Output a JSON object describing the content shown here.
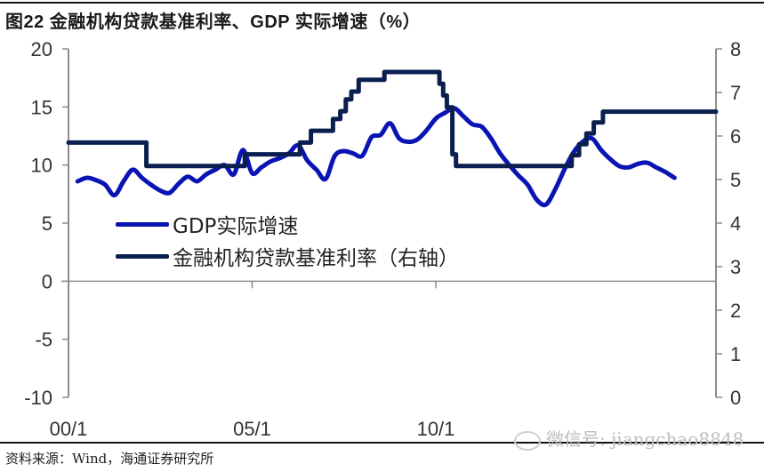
{
  "header": {
    "title": "图22 金融机构贷款基准利率、GDP 实际增速（%）"
  },
  "footer": {
    "source": "资料来源：Wind，海通证券研究所",
    "watermark": "微信号: jiangchao8848"
  },
  "colors": {
    "gdp": "#0a14b4",
    "rate": "#0a1f4f",
    "axis": "#8c8c8c",
    "text": "#333333"
  },
  "legend": {
    "items": [
      {
        "label": "GDP实际增速",
        "color": "#0a14b4"
      },
      {
        "label": "金融机构贷款基准利率（右轴）",
        "color": "#0a1f4f"
      }
    ]
  },
  "axes": {
    "left_ticks": [
      "20",
      "15",
      "10",
      "5",
      "0",
      "-5",
      "-10"
    ],
    "right_ticks": [
      "8",
      "7",
      "6",
      "5",
      "4",
      "3",
      "2",
      "1",
      "0"
    ],
    "x_ticks": [
      "00/1",
      "05/1",
      "10/1"
    ]
  },
  "chart_data": {
    "type": "line",
    "title": "图22 金融机构贷款基准利率、GDP 实际增速（%）",
    "xlabel": "",
    "ylabel": "",
    "x_tick_labels": [
      "00/1",
      "05/1",
      "10/1"
    ],
    "y_left_range": [
      -10,
      20
    ],
    "y_left_ticks": [
      -10,
      -5,
      0,
      5,
      10,
      15,
      20
    ],
    "y_right_range": [
      0,
      8
    ],
    "y_right_ticks": [
      0,
      1,
      2,
      3,
      4,
      5,
      6,
      7,
      8
    ],
    "grid": false,
    "legend_position": "center-left",
    "series": [
      {
        "name": "GDP实际增速",
        "axis": "left",
        "style": "smooth",
        "points": [
          [
            2000.25,
            8.6
          ],
          [
            2000.5,
            8.9
          ],
          [
            2000.75,
            8.7
          ],
          [
            2001.0,
            8.3
          ],
          [
            2001.25,
            7.4
          ],
          [
            2001.5,
            8.6
          ],
          [
            2001.75,
            9.6
          ],
          [
            2002.0,
            8.9
          ],
          [
            2002.25,
            8.3
          ],
          [
            2002.5,
            7.8
          ],
          [
            2002.75,
            7.6
          ],
          [
            2003.0,
            8.4
          ],
          [
            2003.25,
            9.0
          ],
          [
            2003.5,
            8.6
          ],
          [
            2003.75,
            9.2
          ],
          [
            2004.0,
            9.6
          ],
          [
            2004.25,
            10.0
          ],
          [
            2004.5,
            9.2
          ],
          [
            2004.75,
            11.3
          ],
          [
            2005.0,
            9.3
          ],
          [
            2005.25,
            9.8
          ],
          [
            2005.5,
            10.3
          ],
          [
            2005.75,
            10.6
          ],
          [
            2006.0,
            11.0
          ],
          [
            2006.25,
            11.7
          ],
          [
            2006.5,
            10.4
          ],
          [
            2006.75,
            9.6
          ],
          [
            2007.0,
            8.8
          ],
          [
            2007.25,
            10.8
          ],
          [
            2007.5,
            11.2
          ],
          [
            2007.75,
            11.0
          ],
          [
            2008.0,
            10.8
          ],
          [
            2008.25,
            12.4
          ],
          [
            2008.5,
            12.6
          ],
          [
            2008.75,
            13.6
          ],
          [
            2009.0,
            12.3
          ],
          [
            2009.25,
            12.0
          ],
          [
            2009.5,
            12.2
          ],
          [
            2009.75,
            13.0
          ],
          [
            2010.0,
            14.0
          ],
          [
            2010.25,
            14.5
          ],
          [
            2010.5,
            14.9
          ],
          [
            2010.75,
            14.2
          ],
          [
            2011.0,
            13.5
          ],
          [
            2011.25,
            13.3
          ],
          [
            2011.5,
            12.3
          ],
          [
            2011.75,
            11.0
          ],
          [
            2012.0,
            10.0
          ],
          [
            2012.25,
            9.1
          ],
          [
            2012.5,
            8.3
          ],
          [
            2012.75,
            7.0
          ],
          [
            2013.0,
            6.6
          ],
          [
            2013.25,
            7.9
          ],
          [
            2013.5,
            9.6
          ],
          [
            2013.75,
            11.1
          ],
          [
            2014.0,
            12.0
          ],
          [
            2014.25,
            12.3
          ],
          [
            2014.5,
            11.3
          ],
          [
            2014.75,
            10.5
          ],
          [
            2015.0,
            9.9
          ],
          [
            2015.25,
            9.8
          ],
          [
            2015.5,
            10.1
          ],
          [
            2015.75,
            10.2
          ],
          [
            2016.0,
            9.8
          ],
          [
            2016.25,
            9.4
          ],
          [
            2016.5,
            8.9
          ]
        ]
      },
      {
        "name": "金融机构贷款基准利率（右轴）",
        "axis": "right",
        "style": "step",
        "points": [
          [
            2000.0,
            5.85
          ],
          [
            2002.12,
            5.31
          ],
          [
            2004.8,
            5.58
          ],
          [
            2006.3,
            5.85
          ],
          [
            2006.6,
            6.12
          ],
          [
            2007.2,
            6.39
          ],
          [
            2007.4,
            6.57
          ],
          [
            2007.55,
            6.84
          ],
          [
            2007.7,
            7.02
          ],
          [
            2007.9,
            7.29
          ],
          [
            2008.6,
            7.47
          ],
          [
            2010.0,
            7.47
          ],
          [
            2010.1,
            7.2
          ],
          [
            2010.2,
            6.93
          ],
          [
            2010.3,
            6.66
          ],
          [
            2010.45,
            5.58
          ],
          [
            2010.55,
            5.31
          ],
          [
            2013.6,
            5.31
          ],
          [
            2013.7,
            5.56
          ],
          [
            2013.9,
            5.81
          ],
          [
            2014.1,
            6.06
          ],
          [
            2014.3,
            6.31
          ],
          [
            2014.55,
            6.56
          ],
          [
            2016.5,
            6.56
          ]
        ]
      }
    ]
  }
}
